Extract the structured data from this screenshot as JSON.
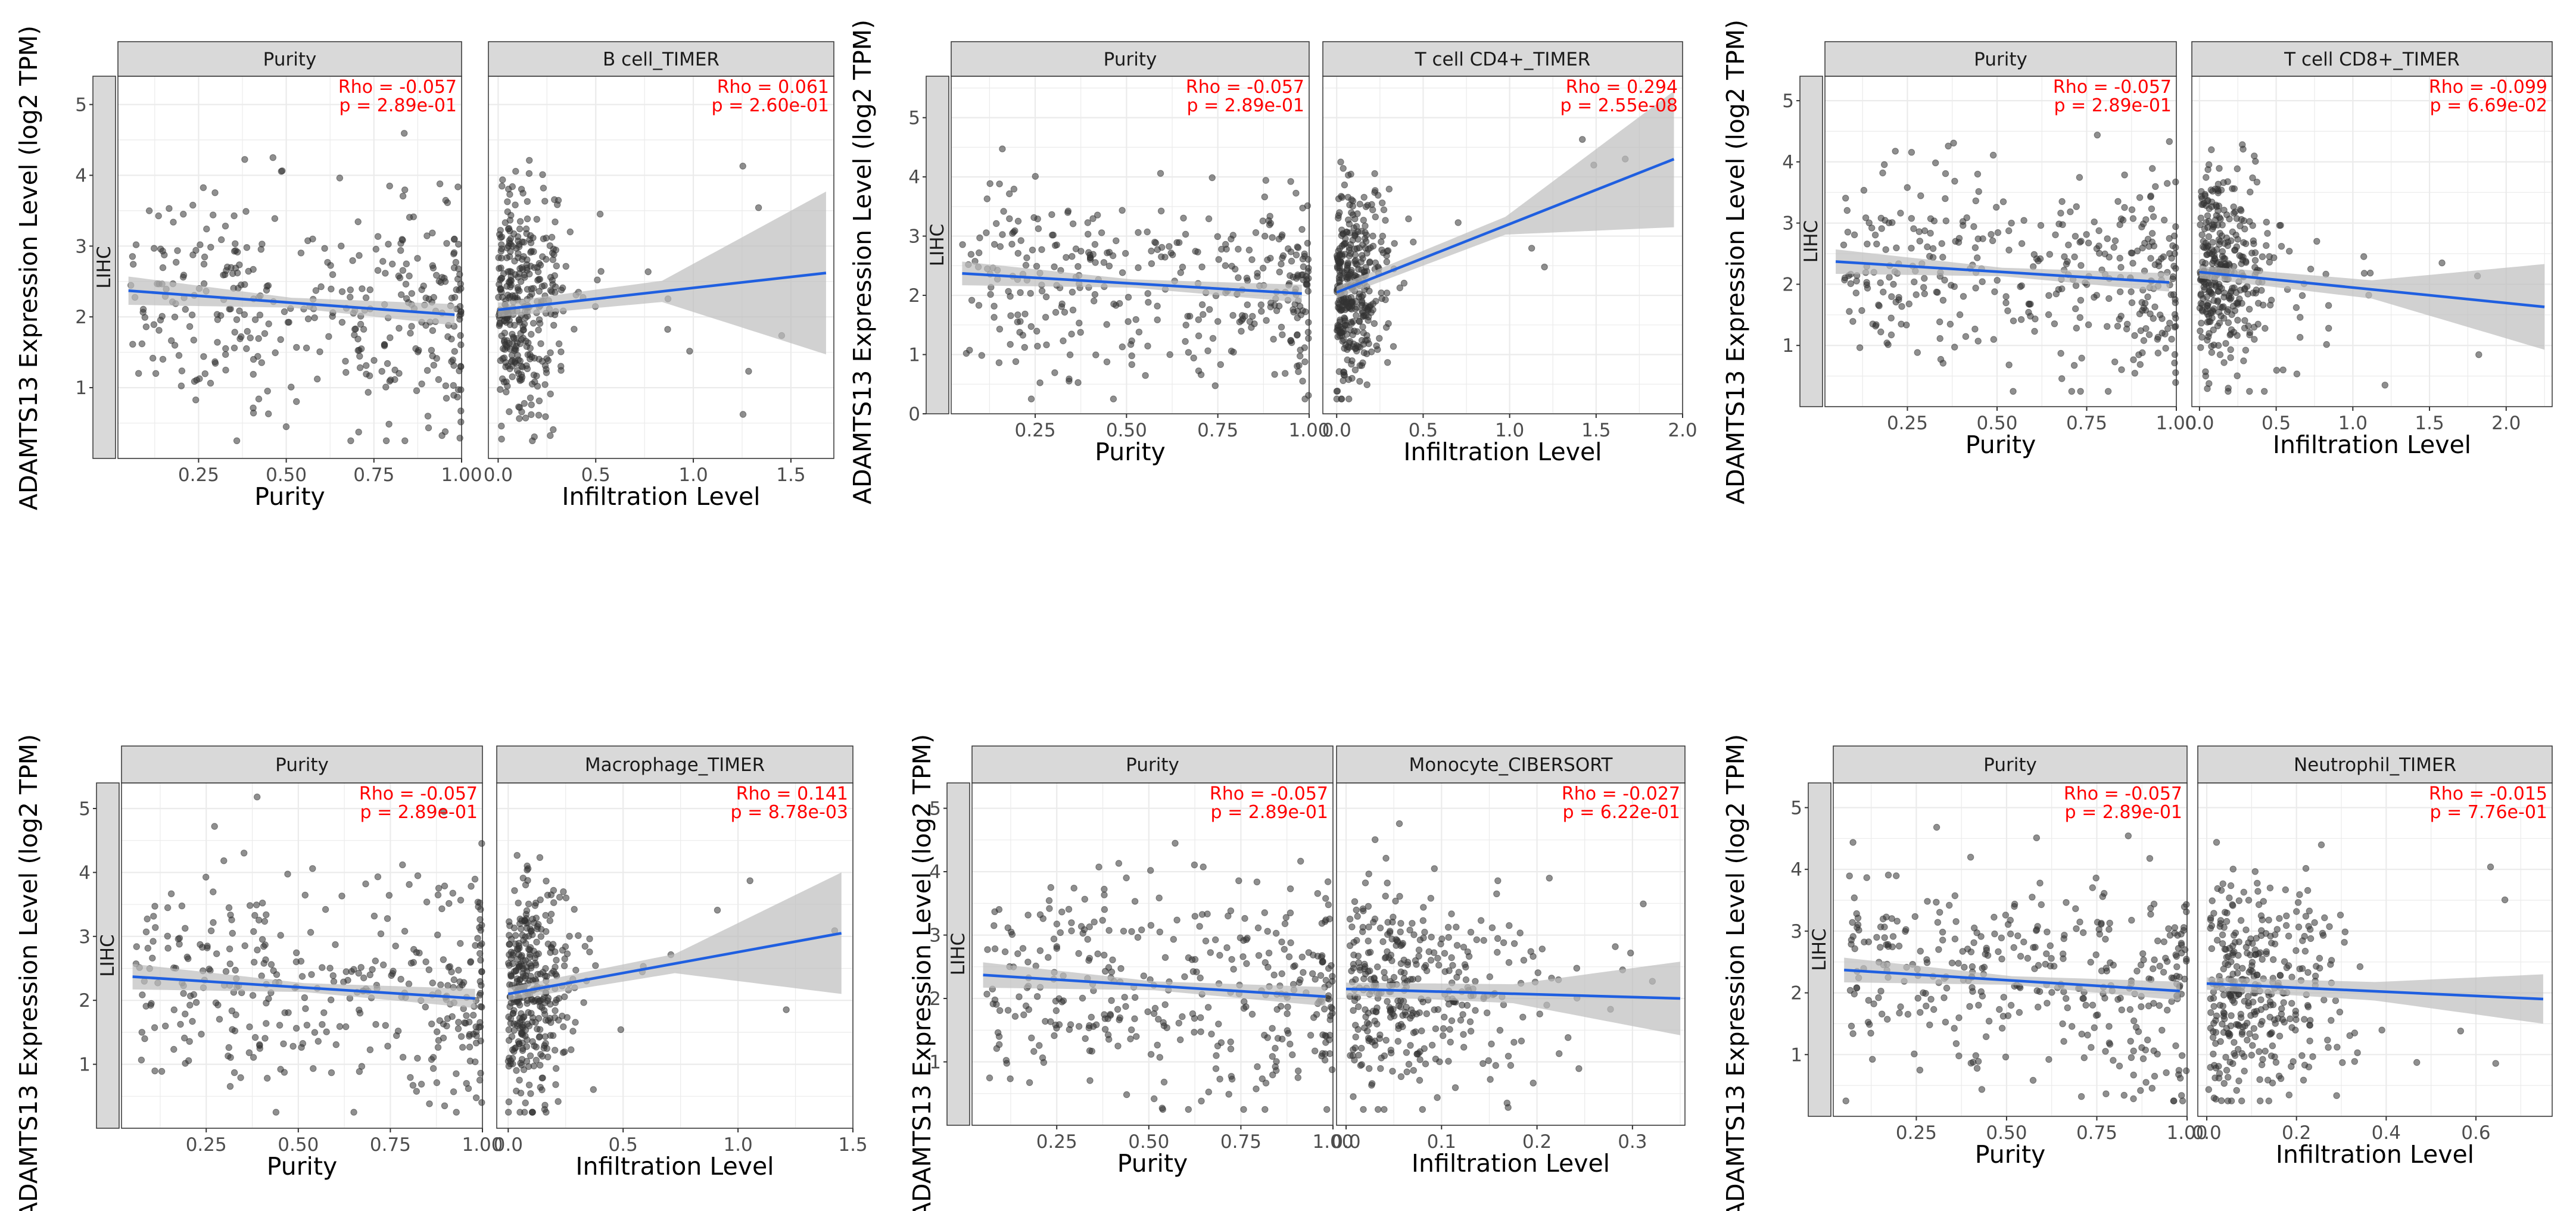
{
  "colors": {
    "point": "#333333",
    "fit_line": "#1f5fe0",
    "ci_band": "#bdbdbd",
    "stats_text": "#ff0000",
    "strip_bg": "#d9d9d9",
    "grid": "#ebebeb"
  },
  "chart_data": [
    {
      "type": "scatter",
      "row_label": "LIHC",
      "ylabel": "ADAMTS13 Expression Level (log2 TPM)",
      "ylim": [
        0,
        5.4
      ],
      "y_ticks": [
        "1",
        "2",
        "3",
        "4",
        "5"
      ],
      "panels": [
        {
          "title": "Purity",
          "xlabel": "Purity",
          "xlim": [
            0.02,
            1.0
          ],
          "x_ticks": [
            "0.25",
            "0.50",
            "0.75",
            "1.00"
          ],
          "rho_label": "Rho = -0.057",
          "p_label": "p = 2.89e-01",
          "fit": {
            "x": [
              0.05,
              0.98
            ],
            "y": [
              2.37,
              2.03
            ]
          },
          "ci_halfwidth": [
            0.2,
            0.07,
            0.15
          ],
          "seed": 11,
          "n": 360,
          "skew": "purity"
        },
        {
          "title": "B cell_TIMER",
          "xlabel": "Infiltration Level",
          "xlim": [
            -0.05,
            1.72
          ],
          "x_ticks": [
            "0.0",
            "0.5",
            "1.0",
            "1.5"
          ],
          "rho_label": "Rho = 0.061",
          "p_label": "p = 2.60e-01",
          "fit": {
            "x": [
              0.0,
              1.68
            ],
            "y": [
              2.1,
              2.62
            ]
          },
          "ci_halfwidth": [
            0.1,
            0.15,
            1.15
          ],
          "seed": 12,
          "n": 360,
          "skew": "low",
          "xmax_data": 0.55
        }
      ]
    },
    {
      "type": "scatter",
      "row_label": "LIHC",
      "ylabel": "ADAMTS13 Expression Level (log2 TPM)",
      "ylim": [
        0,
        5.7
      ],
      "y_ticks": [
        "0",
        "1",
        "2",
        "3",
        "4",
        "5"
      ],
      "panels": [
        {
          "title": "Purity",
          "xlabel": "Purity",
          "xlim": [
            0.02,
            1.0
          ],
          "x_ticks": [
            "0.25",
            "0.50",
            "0.75",
            "1.00"
          ],
          "rho_label": "Rho = -0.057",
          "p_label": "p = 2.89e-01",
          "fit": {
            "x": [
              0.05,
              0.98
            ],
            "y": [
              2.37,
              2.03
            ]
          },
          "ci_halfwidth": [
            0.2,
            0.07,
            0.15
          ],
          "seed": 21,
          "n": 360,
          "skew": "purity"
        },
        {
          "title": "T cell CD4+_TIMER",
          "xlabel": "Infiltration Level",
          "xlim": [
            -0.08,
            2.0
          ],
          "x_ticks": [
            "0.0",
            "0.5",
            "1.0",
            "1.5",
            "2.0"
          ],
          "rho_label": "Rho = 0.294",
          "p_label": "p = 2.55e-08",
          "fit": {
            "x": [
              0.0,
              1.95
            ],
            "y": [
              2.05,
              4.3
            ]
          },
          "ci_halfwidth": [
            0.1,
            0.15,
            1.15
          ],
          "seed": 22,
          "n": 360,
          "skew": "low",
          "xmax_data": 0.45
        }
      ]
    },
    {
      "type": "scatter",
      "row_label": "LIHC",
      "ylabel": "ADAMTS13 Expression Level (log2 TPM)",
      "ylim": [
        0,
        5.4
      ],
      "y_ticks": [
        "1",
        "2",
        "3",
        "4",
        "5"
      ],
      "panels": [
        {
          "title": "Purity",
          "xlabel": "Purity",
          "xlim": [
            0.02,
            1.0
          ],
          "x_ticks": [
            "0.25",
            "0.50",
            "0.75",
            "1.00"
          ],
          "rho_label": "Rho = -0.057",
          "p_label": "p = 2.89e-01",
          "fit": {
            "x": [
              0.05,
              0.98
            ],
            "y": [
              2.37,
              2.03
            ]
          },
          "ci_halfwidth": [
            0.2,
            0.07,
            0.15
          ],
          "seed": 31,
          "n": 360,
          "skew": "purity"
        },
        {
          "title": "T cell CD8+_TIMER",
          "xlabel": "Infiltration Level",
          "xlim": [
            -0.05,
            2.3
          ],
          "x_ticks": [
            "0.0",
            "0.5",
            "1.0",
            "1.5",
            "2.0"
          ],
          "rho_label": "Rho = -0.099",
          "p_label": "p = 6.69e-02",
          "fit": {
            "x": [
              0.0,
              2.25
            ],
            "y": [
              2.2,
              1.63
            ]
          },
          "ci_halfwidth": [
            0.1,
            0.15,
            0.7
          ],
          "seed": 32,
          "n": 360,
          "skew": "low",
          "xmax_data": 0.8
        }
      ]
    },
    {
      "type": "scatter",
      "row_label": "LIHC",
      "ylabel": "ADAMTS13 Expression Level (log2 TPM)",
      "ylim": [
        0,
        5.4
      ],
      "y_ticks": [
        "1",
        "2",
        "3",
        "4",
        "5"
      ],
      "panels": [
        {
          "title": "Purity",
          "xlabel": "Purity",
          "xlim": [
            0.02,
            1.0
          ],
          "x_ticks": [
            "0.25",
            "0.50",
            "0.75",
            "1.00"
          ],
          "rho_label": "Rho = -0.057",
          "p_label": "p = 2.89e-01",
          "fit": {
            "x": [
              0.05,
              0.98
            ],
            "y": [
              2.37,
              2.03
            ]
          },
          "ci_halfwidth": [
            0.2,
            0.07,
            0.15
          ],
          "seed": 41,
          "n": 360,
          "skew": "purity"
        },
        {
          "title": "Macrophage_TIMER",
          "xlabel": "Infiltration Level",
          "xlim": [
            -0.05,
            1.5
          ],
          "x_ticks": [
            "0.0",
            "0.5",
            "1.0",
            "1.5"
          ],
          "rho_label": "Rho = 0.141",
          "p_label": "p = 8.78e-03",
          "fit": {
            "x": [
              0.0,
              1.45
            ],
            "y": [
              2.1,
              3.05
            ]
          },
          "ci_halfwidth": [
            0.1,
            0.15,
            0.95
          ],
          "seed": 42,
          "n": 360,
          "skew": "low",
          "xmax_data": 0.45
        }
      ]
    },
    {
      "type": "scatter",
      "row_label": "LIHC",
      "ylabel": "ADAMTS13 Expression Level (log2 TPM)",
      "ylim": [
        0,
        5.4
      ],
      "y_ticks": [
        "1",
        "2",
        "3",
        "4",
        "5"
      ],
      "panels": [
        {
          "title": "Purity",
          "xlabel": "Purity",
          "xlim": [
            0.02,
            1.0
          ],
          "x_ticks": [
            "0.25",
            "0.50",
            "0.75",
            "1.00"
          ],
          "rho_label": "Rho = -0.057",
          "p_label": "p = 2.89e-01",
          "fit": {
            "x": [
              0.05,
              0.98
            ],
            "y": [
              2.37,
              2.03
            ]
          },
          "ci_halfwidth": [
            0.2,
            0.07,
            0.15
          ],
          "seed": 51,
          "n": 360,
          "skew": "purity"
        },
        {
          "title": "Monocyte_CIBERSORT",
          "xlabel": "Infiltration Level",
          "xlim": [
            -0.01,
            0.355
          ],
          "x_ticks": [
            "0.0",
            "0.1",
            "0.2",
            "0.3"
          ],
          "rho_label": "Rho = -0.027",
          "p_label": "p = 6.22e-01",
          "fit": {
            "x": [
              0.0,
              0.35
            ],
            "y": [
              2.15,
              2.0
            ]
          },
          "ci_halfwidth": [
            0.1,
            0.15,
            0.58
          ],
          "seed": 52,
          "n": 360,
          "skew": "mid",
          "xmax_data": 0.2
        }
      ]
    },
    {
      "type": "scatter",
      "row_label": "LIHC",
      "ylabel": "ADAMTS13 Expression Level (log2 TPM)",
      "ylim": [
        0,
        5.4
      ],
      "y_ticks": [
        "1",
        "2",
        "3",
        "4",
        "5"
      ],
      "panels": [
        {
          "title": "Purity",
          "xlabel": "Purity",
          "xlim": [
            0.02,
            1.0
          ],
          "x_ticks": [
            "0.25",
            "0.50",
            "0.75",
            "1.00"
          ],
          "rho_label": "Rho = -0.057",
          "p_label": "p = 2.89e-01",
          "fit": {
            "x": [
              0.05,
              0.98
            ],
            "y": [
              2.37,
              2.03
            ]
          },
          "ci_halfwidth": [
            0.2,
            0.07,
            0.15
          ],
          "seed": 61,
          "n": 360,
          "skew": "purity"
        },
        {
          "title": "Neutrophil_TIMER",
          "xlabel": "Infiltration Level",
          "xlim": [
            -0.02,
            0.77
          ],
          "x_ticks": [
            "0.0",
            "0.2",
            "0.4",
            "0.6"
          ],
          "rho_label": "Rho = -0.015",
          "p_label": "p = 7.76e-01",
          "fit": {
            "x": [
              0.0,
              0.75
            ],
            "y": [
              2.15,
              1.9
            ]
          },
          "ci_halfwidth": [
            0.1,
            0.15,
            0.4
          ],
          "seed": 62,
          "n": 360,
          "skew": "mid",
          "xmax_data": 0.3
        }
      ]
    }
  ]
}
